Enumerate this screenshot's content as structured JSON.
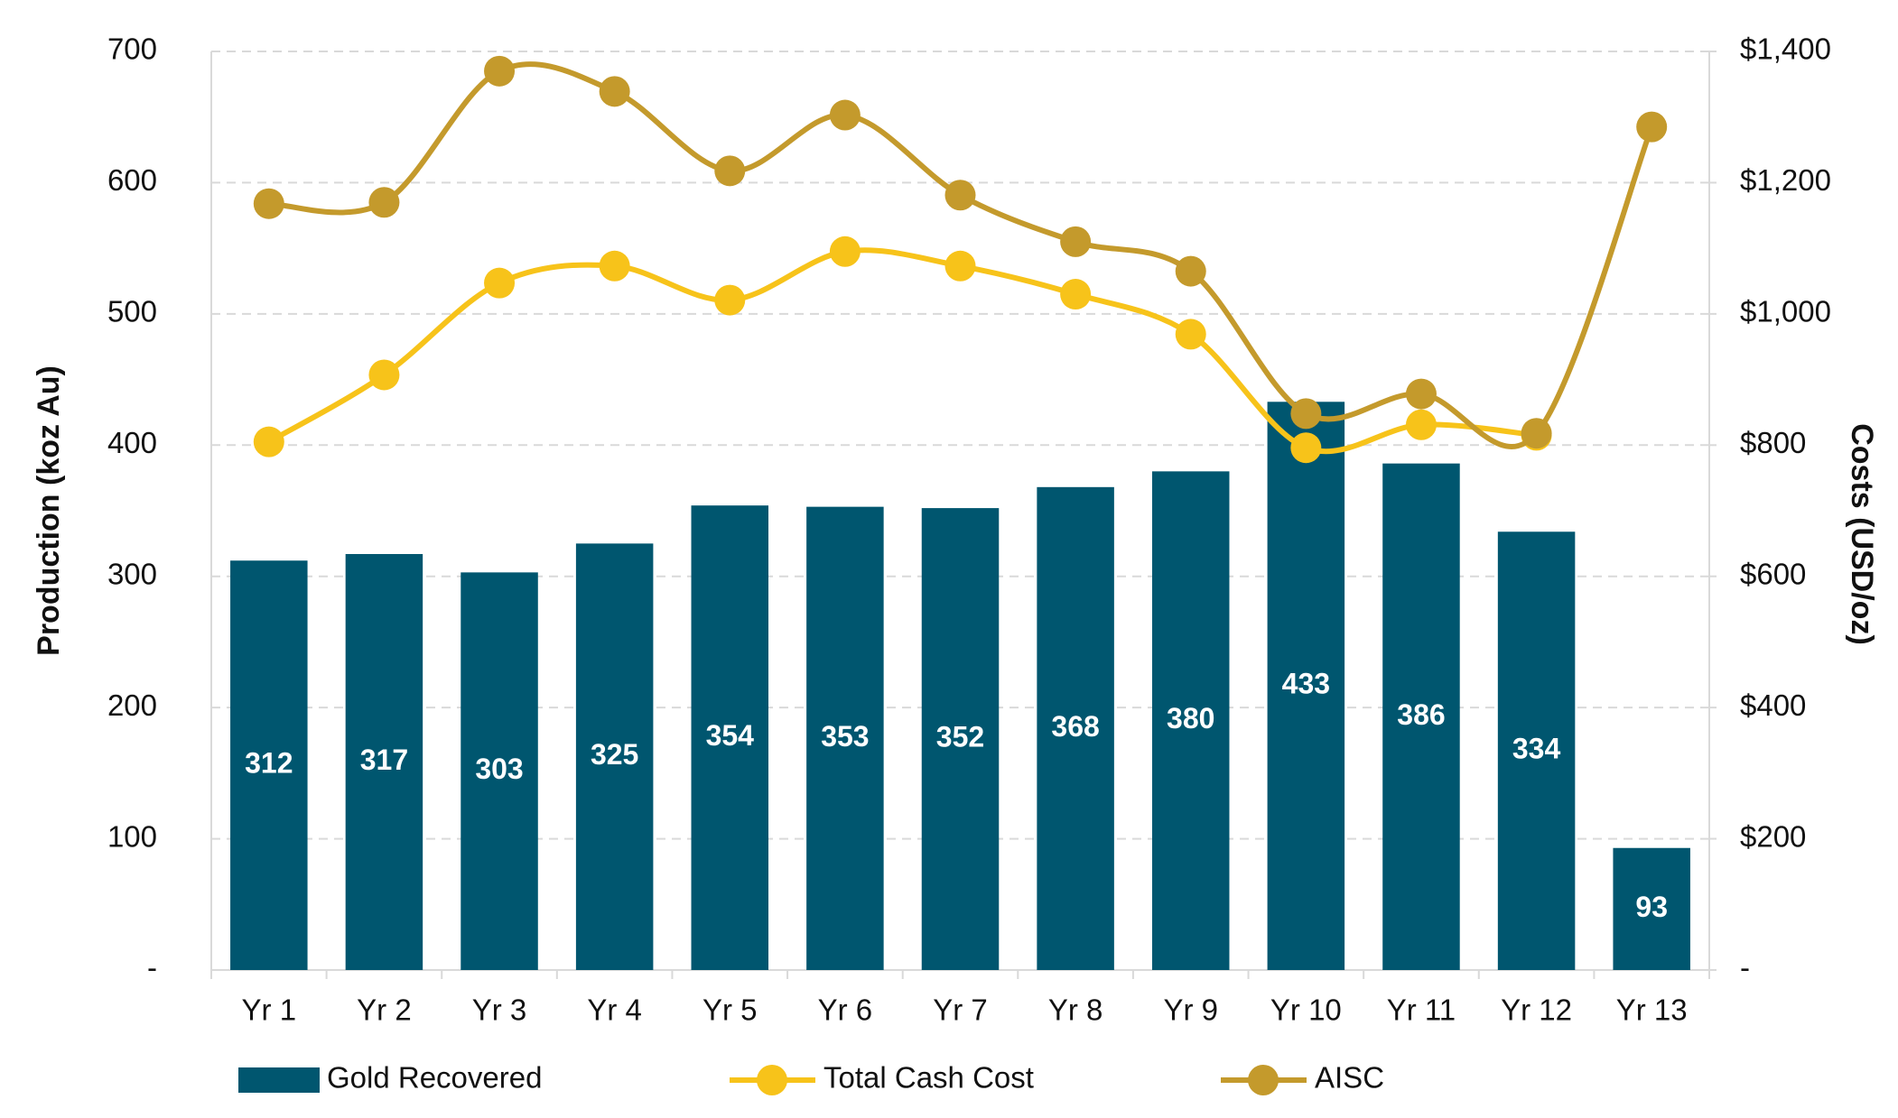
{
  "chart_data": {
    "type": "bar",
    "categories": [
      "Yr 1",
      "Yr 2",
      "Yr 3",
      "Yr 4",
      "Yr 5",
      "Yr 6",
      "Yr 7",
      "Yr 8",
      "Yr 9",
      "Yr 10",
      "Yr 11",
      "Yr 12",
      "Yr 13"
    ],
    "ylabel": "Production (koz Au)",
    "y2label": "Costs (USD/oz)",
    "ylim": [
      0,
      700
    ],
    "yticks": [
      {
        "value": 0,
        "label": "-"
      },
      100,
      200,
      300,
      400,
      500,
      600,
      700
    ],
    "y2lim": [
      0,
      1400
    ],
    "y2ticks": [
      {
        "value": 0,
        "label": "-"
      },
      {
        "value": 200,
        "label": "$200"
      },
      {
        "value": 400,
        "label": "$400"
      },
      {
        "value": 600,
        "label": "$600"
      },
      {
        "value": 800,
        "label": "$800"
      },
      {
        "value": 1000,
        "label": "$1,000"
      },
      {
        "value": 1200,
        "label": "$1,200"
      },
      {
        "value": 1400,
        "label": "$1,400"
      }
    ],
    "grid": true,
    "legend": "bottom",
    "series": [
      {
        "name": "Gold Recovered",
        "type": "bar",
        "color": "#00566f",
        "values": [
          312,
          317,
          303,
          325,
          354,
          353,
          352,
          368,
          380,
          433,
          386,
          334,
          93
        ]
      },
      {
        "name": "Total Cash Cost",
        "type": "line",
        "axis": "y2",
        "color": "#f7c31a",
        "values": [
          805,
          907,
          1047,
          1073,
          1021,
          1095,
          1073,
          1030,
          969,
          796,
          831,
          815,
          null
        ]
      },
      {
        "name": "AISC",
        "type": "line",
        "axis": "y2",
        "color": "#c49a2c",
        "values": [
          1168,
          1170,
          1370,
          1339,
          1218,
          1303,
          1181,
          1110,
          1065,
          848,
          878,
          818,
          1285
        ]
      }
    ]
  }
}
